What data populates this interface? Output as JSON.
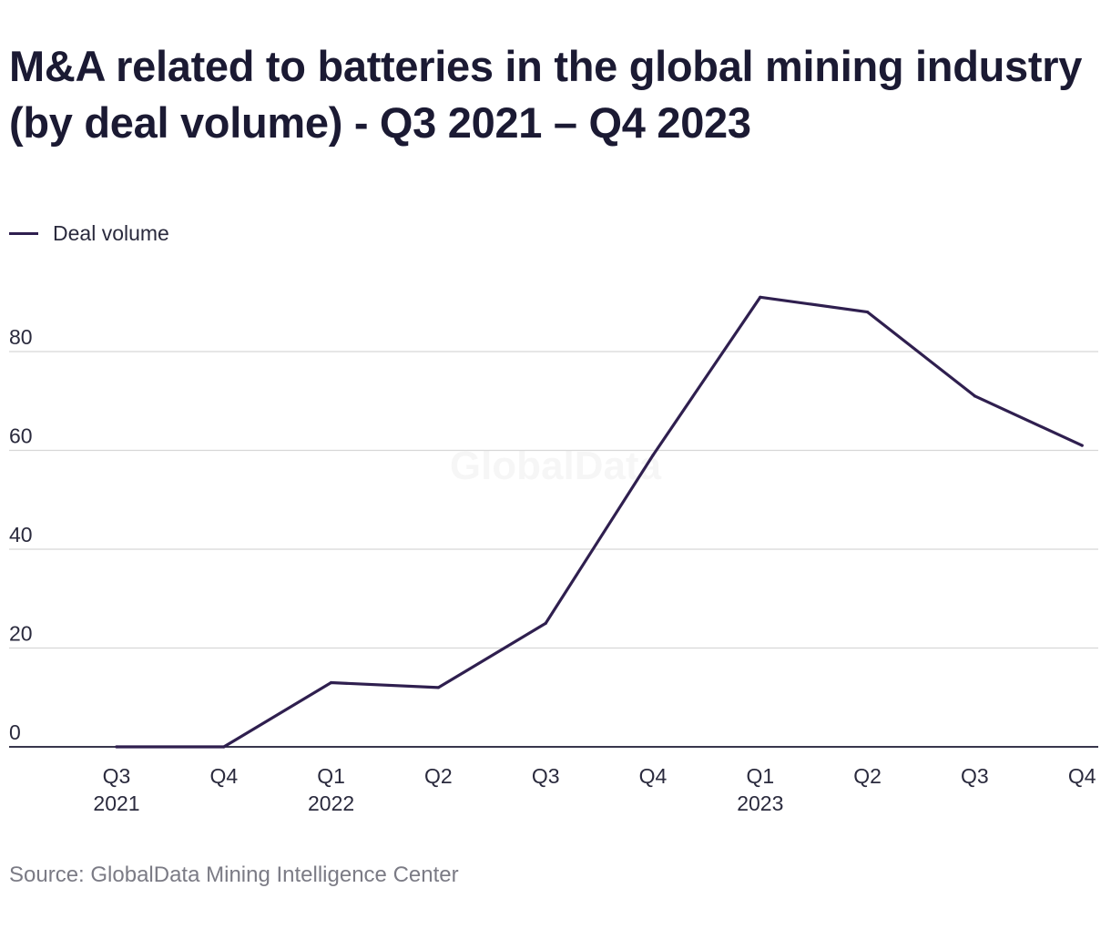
{
  "title": "M&A related to batteries in the global mining industry (by deal volume) - Q3 2021 – Q4 2023",
  "source": "Source: GlobalData Mining Intelligence Center",
  "watermark": "GlobalData",
  "colors": {
    "line": "#2f1f4f",
    "grid": "#d7d7d7",
    "axis": "#1b1a33",
    "text": "#2a2a3d"
  },
  "chart_data": {
    "type": "line",
    "title": "M&A related to batteries in the global mining industry (by deal volume) - Q3 2021 – Q4 2023",
    "xlabel": "",
    "ylabel": "",
    "categories": [
      "Q3 2021",
      "Q4 2021",
      "Q1 2022",
      "Q2 2022",
      "Q3 2022",
      "Q4 2022",
      "Q1 2023",
      "Q2 2023",
      "Q3 2023",
      "Q4 2023"
    ],
    "tick_labels": [
      [
        "Q3",
        "2021"
      ],
      [
        "Q4"
      ],
      [
        "Q1",
        "2022"
      ],
      [
        "Q2"
      ],
      [
        "Q3"
      ],
      [
        "Q4"
      ],
      [
        "Q1",
        "2023"
      ],
      [
        "Q2"
      ],
      [
        "Q3"
      ],
      [
        "Q4"
      ]
    ],
    "series": [
      {
        "name": "Deal volume",
        "values": [
          0,
          0,
          13,
          12,
          25,
          59,
          91,
          88,
          71,
          61
        ]
      }
    ],
    "yticks": [
      0,
      20,
      40,
      60,
      80
    ],
    "ylim": [
      0,
      100
    ],
    "grid": true,
    "legend": "top-left"
  }
}
